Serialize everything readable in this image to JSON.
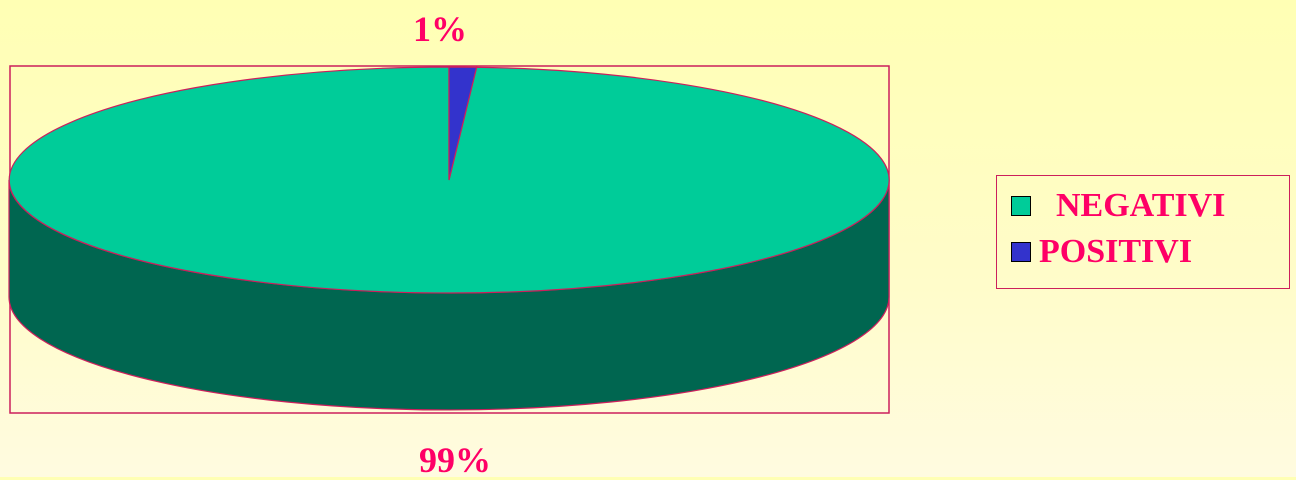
{
  "chart_data": {
    "type": "pie",
    "style": "3d",
    "slices": [
      {
        "label": "NEGATIVI",
        "value": 99,
        "value_label": "99%",
        "color": "#00cc99",
        "side_color": "#006650"
      },
      {
        "label": "POSITIVI",
        "value": 1,
        "value_label": "1%",
        "color": "#3333cc",
        "side_color": "#1a1a80"
      }
    ],
    "legend": {
      "position": "right",
      "entries": [
        "  NEGATIVI",
        "POSITIVI"
      ]
    }
  },
  "colors": {
    "text": "#ff0066",
    "outline": "#cc1f5c",
    "background": "#ffffc0"
  }
}
